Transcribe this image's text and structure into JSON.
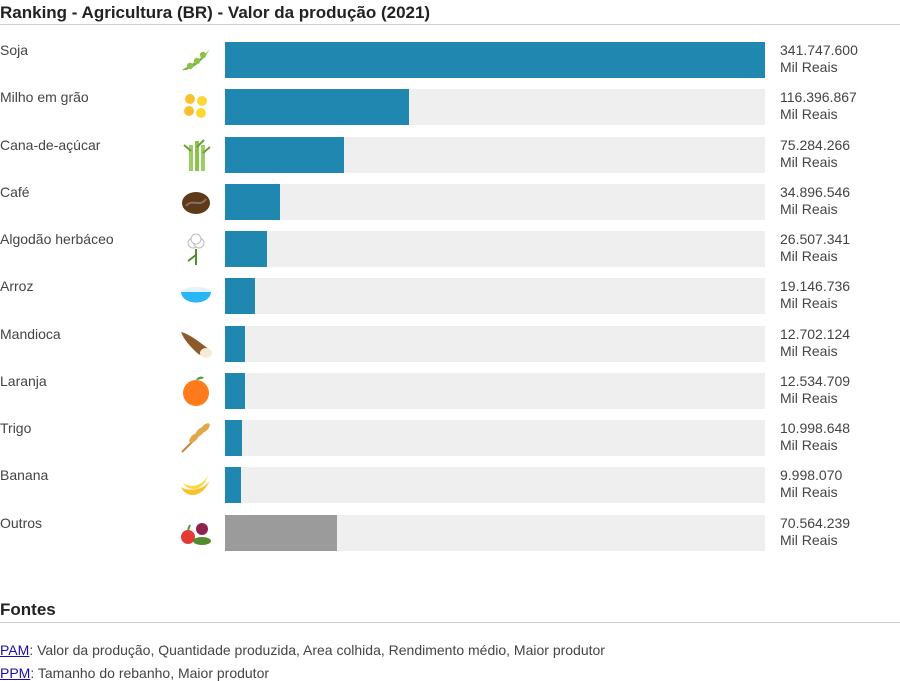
{
  "title": "Ranking - Agricultura (BR) - Valor da produção (2021)",
  "chart_data": {
    "type": "bar",
    "orientation": "horizontal",
    "title": "Ranking - Agricultura (BR) - Valor da produção (2021)",
    "unit": "Mil Reais",
    "max": 341747600,
    "categories": [
      "Soja",
      "Milho em grão",
      "Cana-de-açúcar",
      "Café",
      "Algodão herbáceo",
      "Arroz",
      "Mandioca",
      "Laranja",
      "Trigo",
      "Banana",
      "Outros"
    ],
    "values": [
      341747600,
      116396867,
      75284266,
      34896546,
      26507341,
      19146736,
      12702124,
      12534709,
      10998648,
      9998070,
      70564239
    ],
    "value_labels": [
      "341.747.600",
      "116.396.867",
      "75.284.266",
      "34.896.546",
      "26.507.341",
      "19.146.736",
      "12.702.124",
      "12.534.709",
      "10.998.648",
      "9.998.070",
      "70.564.239"
    ],
    "icons": [
      "soybean-icon",
      "corn-icon",
      "sugarcane-icon",
      "coffee-bean-icon",
      "cotton-icon",
      "rice-bowl-icon",
      "cassava-icon",
      "orange-icon",
      "wheat-icon",
      "banana-icon",
      "vegetables-icon"
    ],
    "colors": {
      "bar": "#1f87b0",
      "other": "#9b9b9b",
      "track": "#efefef"
    }
  },
  "sources": {
    "heading": "Fontes",
    "items": [
      {
        "link": "PAM",
        "text": ": Valor da produção, Quantidade produzida, Area colhida, Rendimento médio, Maior produtor"
      },
      {
        "link": "PPM",
        "text": ": Tamanho do rebanho, Maior produtor"
      }
    ]
  }
}
